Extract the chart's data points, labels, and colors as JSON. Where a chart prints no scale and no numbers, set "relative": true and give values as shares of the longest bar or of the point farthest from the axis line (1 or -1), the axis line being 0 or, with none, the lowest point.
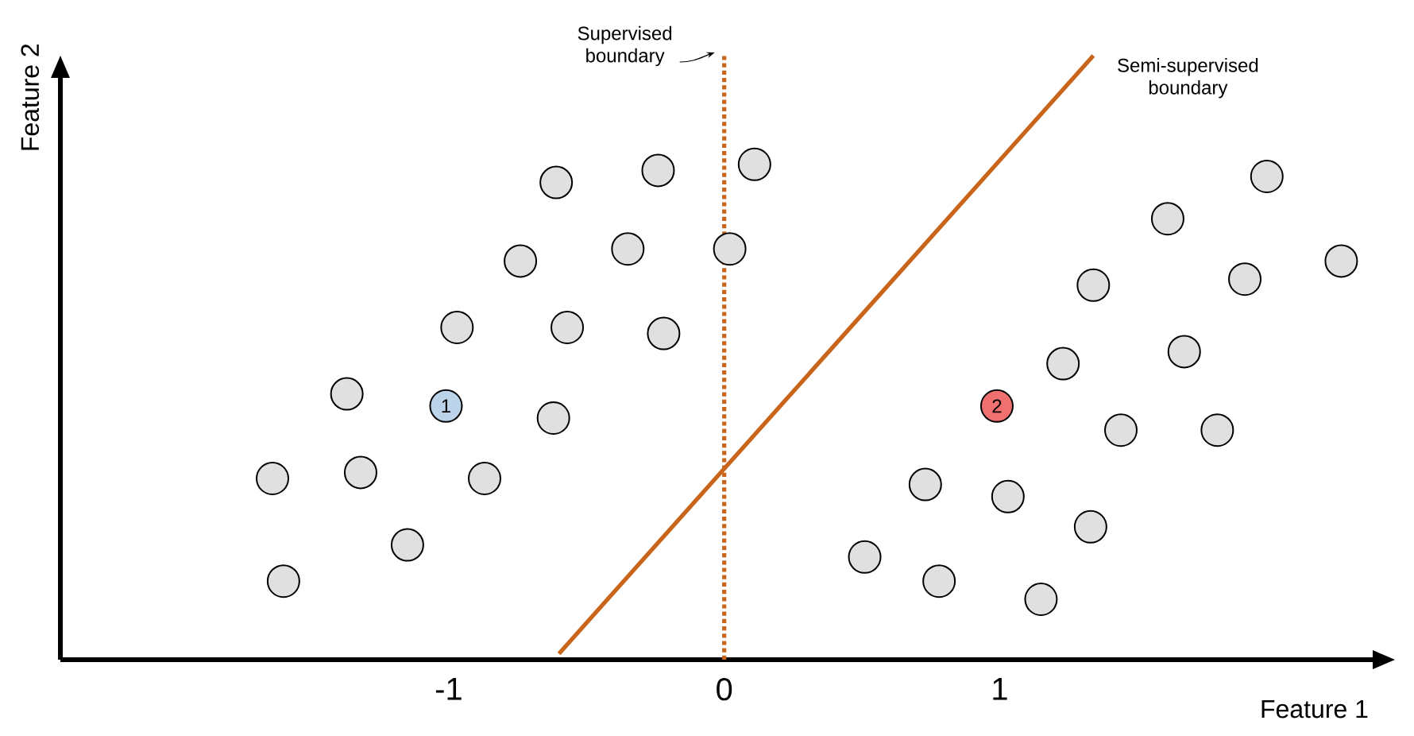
{
  "chart_data": {
    "type": "scatter",
    "relative": true,
    "xlabel": "Feature 1",
    "ylabel": "Feature 2",
    "xlim": [
      -2.41,
      2.36
    ],
    "xticks": [
      -1,
      0,
      1
    ],
    "tick_labels": "x",
    "grid": false,
    "series": [
      {
        "color": "#e0e0e0",
        "x": [
          -0.61,
          -0.24,
          0.11,
          -0.74,
          -0.35,
          0.02,
          -0.97,
          -0.57,
          -0.22,
          -1.37,
          -0.62,
          -1.64,
          -1.32,
          -0.87,
          -1.15,
          -1.6,
          1.97,
          1.61,
          1.34,
          1.89,
          2.24,
          1.23,
          1.67,
          1.44,
          1.79,
          0.73,
          1.03,
          1.33,
          0.51,
          0.78,
          1.15
        ],
        "values": [
          0.79,
          0.81,
          0.82,
          0.66,
          0.68,
          0.68,
          0.55,
          0.55,
          0.54,
          0.44,
          0.4,
          0.3,
          0.31,
          0.3,
          0.19,
          0.13,
          0.8,
          0.73,
          0.62,
          0.63,
          0.66,
          0.49,
          0.51,
          0.38,
          0.38,
          0.29,
          0.27,
          0.22,
          0.17,
          0.13,
          0.1
        ]
      },
      {
        "color": "#bcd4ea",
        "x": [
          -1.01
        ],
        "values": [
          0.42
        ]
      },
      {
        "color": "#f07070",
        "x": [
          0.99
        ],
        "values": [
          0.42
        ]
      },
      {
        "type": "line",
        "name": "Semi-supervised boundary",
        "color": "#c8651b",
        "line_style": "solid",
        "marker": "none",
        "x": [
          -0.6,
          1.34
        ],
        "values": [
          0.01,
          1.0
        ]
      }
    ],
    "ref_lines": [
      {
        "axis": "x",
        "value": 0,
        "label": "Supervised boundary",
        "color": "#c8651b",
        "line_style": "dotted"
      }
    ],
    "annotations": [
      {
        "text": "1",
        "x": -1.01,
        "y": 0.42
      },
      {
        "text": "2",
        "x": 0.99,
        "y": 0.42
      }
    ]
  }
}
